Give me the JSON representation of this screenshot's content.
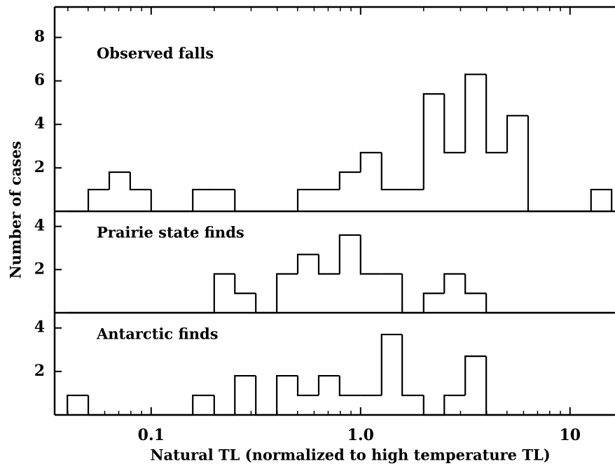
{
  "chart_data": [
    {
      "type": "histogram",
      "title": "Observed falls",
      "bins": [
        0.0398,
        0.0501,
        0.0631,
        0.0794,
        0.1,
        0.126,
        0.158,
        0.2,
        0.251,
        0.316,
        0.398,
        0.501,
        0.631,
        0.794,
        1.0,
        1.26,
        1.58,
        2.0,
        2.51,
        3.16,
        3.98,
        5.01,
        6.31,
        7.94,
        10,
        12.6,
        15.8
      ],
      "values": [
        0,
        1,
        1.8,
        1,
        0,
        0,
        1,
        1,
        0,
        0,
        0,
        1,
        1,
        1.8,
        2.7,
        1,
        1,
        5.4,
        2.7,
        6.3,
        2.7,
        4.4,
        0,
        0,
        0,
        1
      ],
      "ylim": [
        0,
        9.4
      ],
      "yticks": [
        2,
        4,
        6,
        8
      ]
    },
    {
      "type": "histogram",
      "title": "Prairie state finds",
      "ylabel": "Number of cases",
      "bins": [
        0.0398,
        0.0501,
        0.0631,
        0.0794,
        0.1,
        0.126,
        0.158,
        0.2,
        0.251,
        0.316,
        0.398,
        0.501,
        0.631,
        0.794,
        1.0,
        1.26,
        1.58,
        2.0,
        2.51,
        3.16,
        3.98,
        5.01,
        6.31,
        7.94,
        10,
        12.6,
        15.8
      ],
      "values": [
        0,
        0,
        0,
        0,
        0,
        0,
        0,
        1.8,
        0.9,
        0,
        1.8,
        2.7,
        1.8,
        3.6,
        1.8,
        1.8,
        0,
        0.9,
        1.8,
        0.9,
        0,
        0,
        0,
        0,
        0,
        0
      ],
      "ylim": [
        0,
        4.7
      ],
      "yticks": [
        2,
        4
      ]
    },
    {
      "type": "histogram",
      "title": "Antarctic finds",
      "xlabel": "Natural TL (normalized to high temperature TL)",
      "bins": [
        0.0398,
        0.0501,
        0.0631,
        0.0794,
        0.1,
        0.126,
        0.158,
        0.2,
        0.251,
        0.316,
        0.398,
        0.501,
        0.631,
        0.794,
        1.0,
        1.26,
        1.58,
        2.0,
        2.51,
        3.16,
        3.98,
        5.01,
        6.31,
        7.94,
        10,
        12.6,
        15.8
      ],
      "values": [
        0.9,
        0,
        0,
        0,
        0,
        0,
        0.9,
        0,
        1.8,
        0,
        1.8,
        0.9,
        1.8,
        0.9,
        0.9,
        3.7,
        0.9,
        0,
        0.9,
        2.7,
        0,
        0,
        0,
        0,
        0,
        0
      ],
      "ylim": [
        0,
        4.7
      ],
      "yticks": [
        2,
        4
      ],
      "xlim": [
        0.0346,
        16.4
      ],
      "log_x": true,
      "xticks": [
        0.1,
        {
          "value": 1,
          "label": "1.0"
        },
        10
      ],
      "xticks_minor": [
        0.04,
        0.05,
        0.06,
        0.07,
        0.08,
        0.09,
        0.2,
        0.3,
        0.4,
        0.5,
        0.6,
        0.7,
        0.8,
        0.9,
        2,
        3,
        4,
        5,
        6,
        7,
        8,
        9
      ],
      "color": "#000000"
    }
  ]
}
